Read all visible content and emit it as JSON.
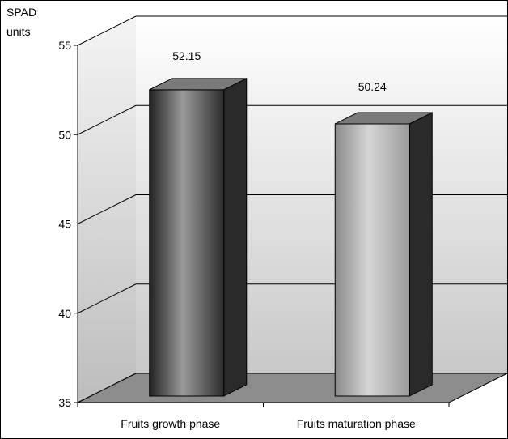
{
  "chart_data": {
    "type": "bar",
    "style": "3d-column",
    "categories": [
      "Fruits growth phase",
      "Fruits maturation phase"
    ],
    "values": [
      52.15,
      50.24
    ],
    "data_labels": [
      "52.15",
      "50.24"
    ],
    "ylabel_lines": [
      "SPAD",
      "units"
    ],
    "ylim": [
      35,
      55
    ],
    "yticks": [
      35,
      40,
      45,
      50,
      55
    ],
    "ytick_labels": [
      "35",
      "40",
      "45",
      "50",
      "55"
    ],
    "grid": true,
    "legend": "none",
    "colors": {
      "wall_top": "#ffffff",
      "wall_bottom": "#c8c8c8",
      "floor": "#8c8c8c",
      "bar_dark": "#3a3a3a",
      "bar_light": "#c4c4c4",
      "bar_side": "#2a2a2a",
      "bar_top": "#7a7a7a"
    }
  }
}
